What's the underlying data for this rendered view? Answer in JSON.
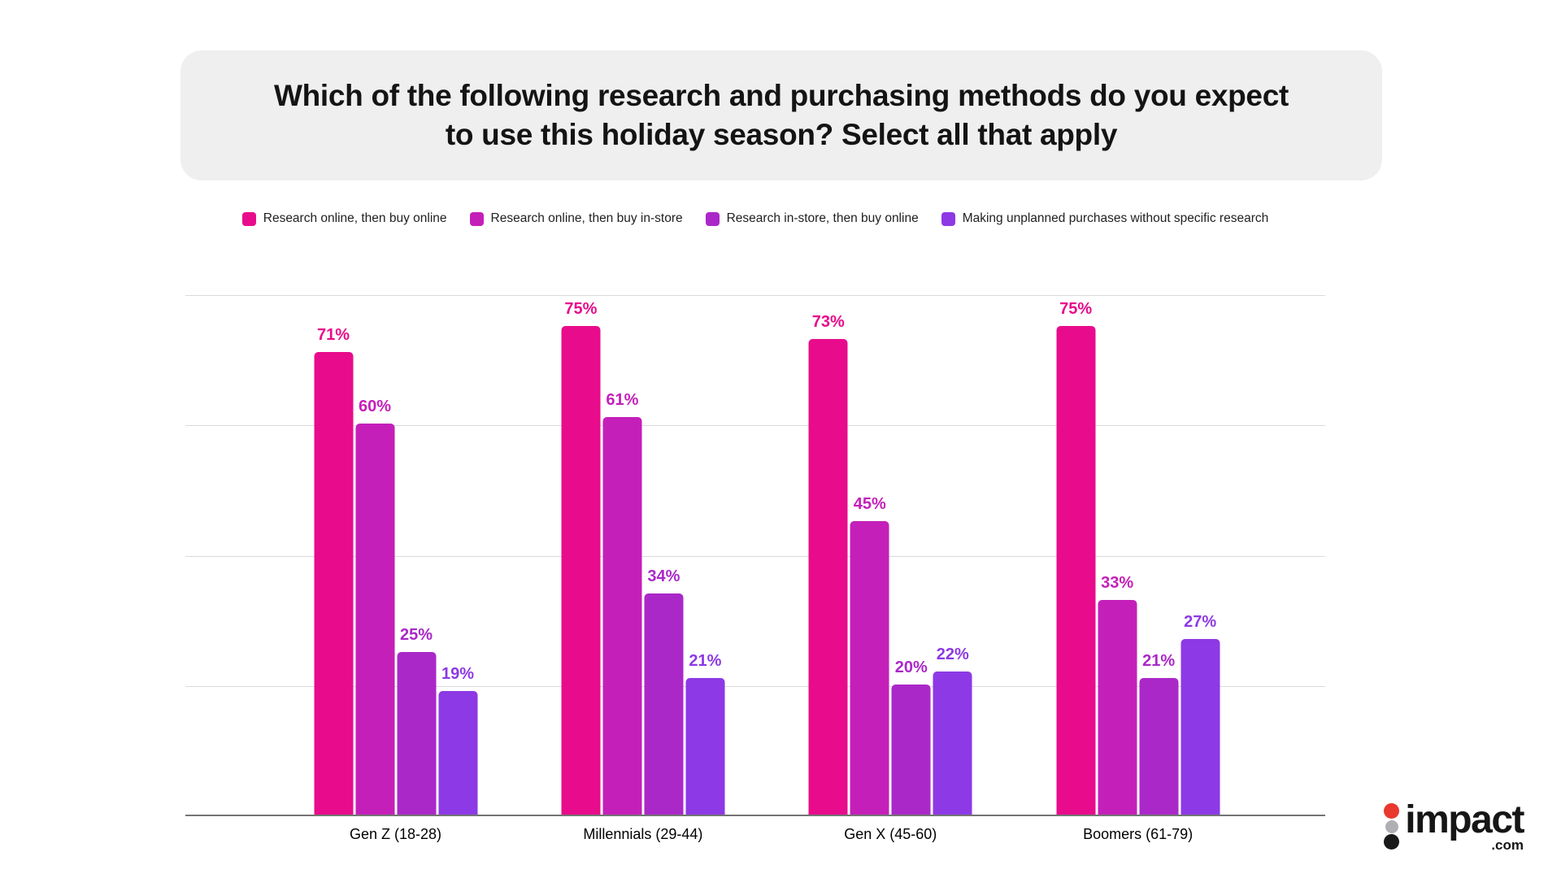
{
  "title": {
    "line1": "Which of the following research and purchasing methods do you expect",
    "line2": "to use this holiday season? Select all that apply"
  },
  "chart_data": {
    "type": "bar",
    "categories": [
      "Gen Z (18-28)",
      "Millennials (29-44)",
      "Gen X (45-60)",
      "Boomers (61-79)"
    ],
    "series": [
      {
        "name": "Research online, then buy online",
        "color": "#E80C8C",
        "values": [
          71,
          75,
          73,
          75
        ]
      },
      {
        "name": "Research online, then buy in-store",
        "color": "#C51FB9",
        "values": [
          60,
          61,
          45,
          33
        ]
      },
      {
        "name": "Research in-store, then buy online",
        "color": "#AA28C8",
        "values": [
          25,
          34,
          20,
          21
        ]
      },
      {
        "name": "Making unplanned purchases without specific research",
        "color": "#8D39E5",
        "values": [
          19,
          21,
          22,
          27
        ]
      }
    ],
    "value_labels": true,
    "value_suffix": "%",
    "ylim": [
      0,
      80
    ],
    "gridline_values": [
      0,
      20,
      40,
      60,
      80
    ],
    "y_axis_tick_labels_visible": false,
    "legend_position": "top",
    "grid": true
  },
  "logo": {
    "wordmark": "impact",
    "suffix": ".com",
    "dot_colors": [
      "#E9382D",
      "#B0B0B4",
      "#1A1A1A"
    ]
  }
}
